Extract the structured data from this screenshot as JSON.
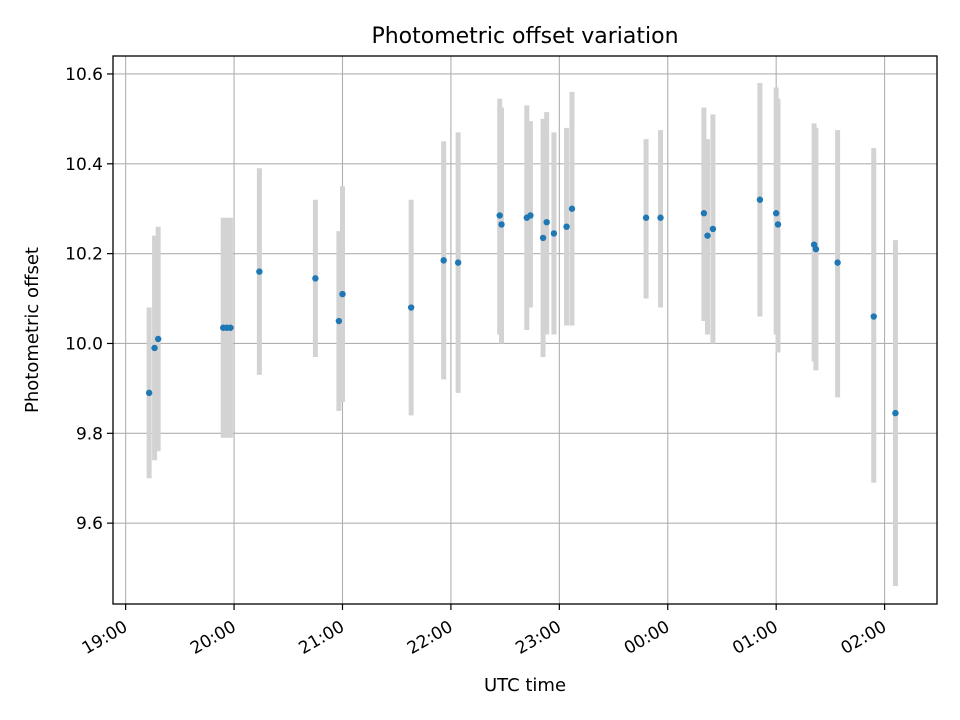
{
  "chart_data": {
    "type": "scatter",
    "title": "Photometric offset variation",
    "xlabel": "UTC time",
    "ylabel": "Photometric offset",
    "x_ticks": [
      "19:00",
      "20:00",
      "21:00",
      "22:00",
      "23:00",
      "00:00",
      "01:00",
      "02:00"
    ],
    "y_ticks": [
      "9.6",
      "9.8",
      "10.0",
      "10.2",
      "10.4",
      "10.6"
    ],
    "xlim": [
      "18:53",
      "02:29"
    ],
    "ylim": [
      9.42,
      10.64
    ],
    "grid": true,
    "colors": {
      "marker": "#1f77b4",
      "errorbar": "#d3d3d3",
      "grid": "#b0b0b0"
    },
    "points": [
      {
        "x": "19:13",
        "y": 9.89,
        "ylow": 9.7,
        "yhigh": 10.08
      },
      {
        "x": "19:16",
        "y": 9.99,
        "ylow": 9.74,
        "yhigh": 10.24
      },
      {
        "x": "19:18",
        "y": 10.01,
        "ylow": 9.76,
        "yhigh": 10.26
      },
      {
        "x": "19:54",
        "y": 10.035,
        "ylow": 9.79,
        "yhigh": 10.28
      },
      {
        "x": "19:56",
        "y": 10.035,
        "ylow": 9.79,
        "yhigh": 10.28
      },
      {
        "x": "19:58",
        "y": 10.035,
        "ylow": 9.79,
        "yhigh": 10.28
      },
      {
        "x": "20:14",
        "y": 10.16,
        "ylow": 9.93,
        "yhigh": 10.39
      },
      {
        "x": "20:45",
        "y": 10.145,
        "ylow": 9.97,
        "yhigh": 10.32
      },
      {
        "x": "20:58",
        "y": 10.05,
        "ylow": 9.85,
        "yhigh": 10.25
      },
      {
        "x": "21:00",
        "y": 10.11,
        "ylow": 9.87,
        "yhigh": 10.35
      },
      {
        "x": "21:38",
        "y": 10.08,
        "ylow": 9.84,
        "yhigh": 10.32
      },
      {
        "x": "21:56",
        "y": 10.185,
        "ylow": 9.92,
        "yhigh": 10.45
      },
      {
        "x": "22:04",
        "y": 10.18,
        "ylow": 9.89,
        "yhigh": 10.47
      },
      {
        "x": "22:27",
        "y": 10.285,
        "ylow": 10.02,
        "yhigh": 10.545
      },
      {
        "x": "22:28",
        "y": 10.265,
        "ylow": 10.0,
        "yhigh": 10.525
      },
      {
        "x": "22:42",
        "y": 10.28,
        "ylow": 10.03,
        "yhigh": 10.53
      },
      {
        "x": "22:44",
        "y": 10.285,
        "ylow": 10.08,
        "yhigh": 10.495
      },
      {
        "x": "22:51",
        "y": 10.235,
        "ylow": 9.97,
        "yhigh": 10.5
      },
      {
        "x": "22:53",
        "y": 10.27,
        "ylow": 10.02,
        "yhigh": 10.515
      },
      {
        "x": "22:57",
        "y": 10.245,
        "ylow": 10.02,
        "yhigh": 10.47
      },
      {
        "x": "23:04",
        "y": 10.26,
        "ylow": 10.04,
        "yhigh": 10.48
      },
      {
        "x": "23:07",
        "y": 10.3,
        "ylow": 10.04,
        "yhigh": 10.56
      },
      {
        "x": "23:48",
        "y": 10.28,
        "ylow": 10.1,
        "yhigh": 10.455
      },
      {
        "x": "23:56",
        "y": 10.28,
        "ylow": 10.08,
        "yhigh": 10.475
      },
      {
        "x": "00:20",
        "y": 10.29,
        "ylow": 10.05,
        "yhigh": 10.525
      },
      {
        "x": "00:22",
        "y": 10.24,
        "ylow": 10.02,
        "yhigh": 10.455
      },
      {
        "x": "00:25",
        "y": 10.255,
        "ylow": 10.0,
        "yhigh": 10.51
      },
      {
        "x": "00:51",
        "y": 10.32,
        "ylow": 10.06,
        "yhigh": 10.58
      },
      {
        "x": "01:00",
        "y": 10.29,
        "ylow": 10.02,
        "yhigh": 10.57
      },
      {
        "x": "01:01",
        "y": 10.265,
        "ylow": 9.98,
        "yhigh": 10.545
      },
      {
        "x": "01:21",
        "y": 10.22,
        "ylow": 9.96,
        "yhigh": 10.49
      },
      {
        "x": "01:22",
        "y": 10.21,
        "ylow": 9.94,
        "yhigh": 10.48
      },
      {
        "x": "01:34",
        "y": 10.18,
        "ylow": 9.88,
        "yhigh": 10.475
      },
      {
        "x": "01:54",
        "y": 10.06,
        "ylow": 9.69,
        "yhigh": 10.435
      },
      {
        "x": "02:06",
        "y": 9.845,
        "ylow": 9.46,
        "yhigh": 10.23
      }
    ]
  }
}
